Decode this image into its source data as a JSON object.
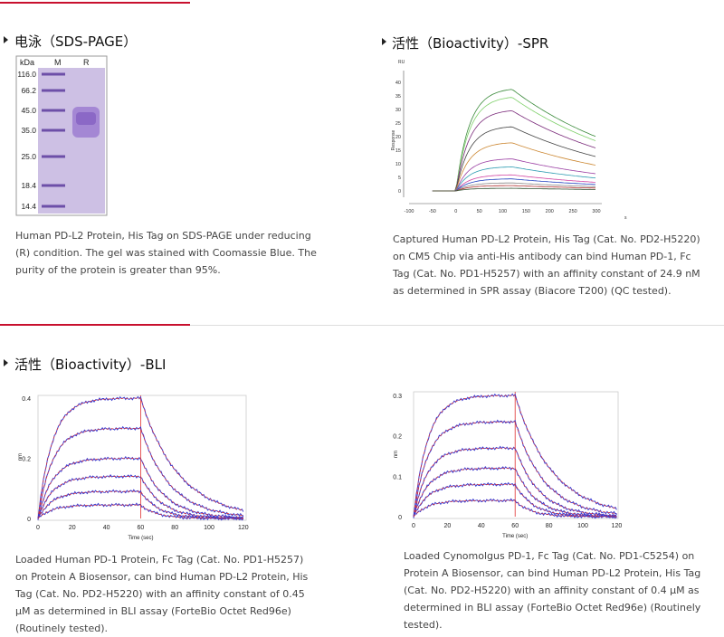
{
  "sds_page": {
    "title": "电泳（SDS-PAGE）",
    "gel": {
      "header": [
        "kDa",
        "M",
        "R"
      ],
      "markers": [
        "116.0",
        "66.2",
        "45.0",
        "35.0",
        "25.0",
        "18.4",
        "14.4"
      ]
    },
    "caption": "Human PD-L2 Protein, His Tag on SDS-PAGE under reducing (R) condition. The gel was stained with Coomassie Blue. The purity of the protein is greater than 95%."
  },
  "spr": {
    "title": "活性（Bioactivity）-SPR",
    "figure": {
      "y_unit": "RU",
      "y_label": "Response",
      "x_unit": "s",
      "xticks": [
        "-100",
        "-50",
        "0",
        "50",
        "100",
        "150",
        "200",
        "250",
        "300"
      ],
      "yticks": [
        "0",
        "5",
        "10",
        "15",
        "20",
        "25",
        "30",
        "35",
        "40"
      ]
    },
    "caption": "Captured Human PD-L2 Protein, His Tag (Cat. No. PD2-H5220) on CM5 Chip via anti-His antibody can bind Human PD-1, Fc Tag (Cat. No. PD1-H5257) with an affinity constant of 24.9 nM as determined in SPR assay (Biacore T200) (QC tested)."
  },
  "bli": {
    "title": "活性（Bioactivity）-BLI",
    "figures": [
      {
        "y_label": "nm",
        "x_label": "Time (sec)",
        "yticks": [
          "0",
          "0.2",
          "0.4"
        ],
        "xticks": [
          "0",
          "20",
          "40",
          "60",
          "80",
          "100",
          "120"
        ],
        "caption": "Loaded Human PD-1 Protein, Fc Tag (Cat. No. PD1-H5257) on Protein A Biosensor, can bind Human PD-L2 Protein, His Tag (Cat. No. PD2-H5220) with an affinity constant of 0.45 μM as determined in BLI assay (ForteBio Octet Red96e) (Routinely tested)."
      },
      {
        "y_label": "nm",
        "x_label": "Time (sec)",
        "yticks": [
          "0",
          "0.1",
          "0.2",
          "0.3"
        ],
        "xticks": [
          "0",
          "20",
          "40",
          "60",
          "80",
          "100",
          "120"
        ],
        "caption": "Loaded Cynomolgus PD-1, Fc Tag (Cat. No. PD1-C5254) on Protein A Biosensor, can bind Human PD-L2 Protein, His Tag (Cat. No. PD2-H5220) with an affinity constant of 0.4 μM as determined in BLI assay (ForteBio Octet Red96e) (Routinely tested)."
      }
    ]
  }
}
